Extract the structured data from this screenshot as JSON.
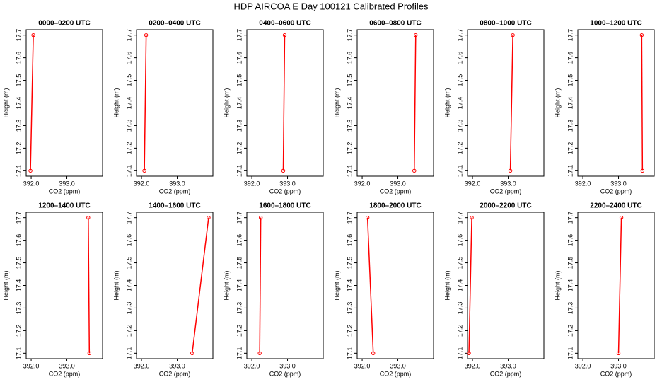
{
  "title": "HDP AIRCOA E  Day 100121  Calibrated Profiles",
  "chart_data": [
    {
      "type": "line",
      "title": "0000–0200 UTC",
      "xlabel": "CO2 (ppm)",
      "ylabel": "Height (m)",
      "color": "#ff0000",
      "x": [
        391.98,
        392.06
      ],
      "values": [
        17.1,
        17.7
      ],
      "xlim": [
        391.86,
        394.0
      ],
      "ylim": [
        17.076,
        17.724
      ],
      "xticks": [
        {
          "value": 392,
          "label": "392.0"
        },
        {
          "value": 393,
          "label": "393.0"
        }
      ],
      "yticks": [
        17.1,
        17.2,
        17.3,
        17.4,
        17.5,
        17.6,
        17.7
      ]
    },
    {
      "type": "line",
      "title": "0200–0400 UTC",
      "xlabel": "CO2 (ppm)",
      "ylabel": "Height (m)",
      "color": "#ff0000",
      "x": [
        392.08,
        392.13
      ],
      "values": [
        17.1,
        17.7
      ],
      "xlim": [
        391.86,
        394.0
      ],
      "ylim": [
        17.076,
        17.724
      ],
      "xticks": [
        {
          "value": 392,
          "label": "392.0"
        },
        {
          "value": 393,
          "label": "393.0"
        }
      ],
      "yticks": [
        17.1,
        17.2,
        17.3,
        17.4,
        17.5,
        17.6,
        17.7
      ]
    },
    {
      "type": "line",
      "title": "0400–0600 UTC",
      "xlabel": "CO2 (ppm)",
      "ylabel": "Height (m)",
      "color": "#ff0000",
      "x": [
        392.88,
        392.92
      ],
      "values": [
        17.1,
        17.7
      ],
      "xlim": [
        391.86,
        394.0
      ],
      "ylim": [
        17.076,
        17.724
      ],
      "xticks": [
        {
          "value": 392,
          "label": "392.0"
        },
        {
          "value": 393,
          "label": "393.0"
        }
      ],
      "yticks": [
        17.1,
        17.2,
        17.3,
        17.4,
        17.5,
        17.6,
        17.7
      ]
    },
    {
      "type": "line",
      "title": "0600–0800 UTC",
      "xlabel": "CO2 (ppm)",
      "ylabel": "Height (m)",
      "color": "#ff0000",
      "x": [
        393.46,
        393.5
      ],
      "values": [
        17.1,
        17.7
      ],
      "xlim": [
        391.86,
        394.0
      ],
      "ylim": [
        17.076,
        17.724
      ],
      "xticks": [
        {
          "value": 392,
          "label": "392.0"
        },
        {
          "value": 393,
          "label": "393.0"
        }
      ],
      "yticks": [
        17.1,
        17.2,
        17.3,
        17.4,
        17.5,
        17.6,
        17.7
      ]
    },
    {
      "type": "line",
      "title": "0800–1000 UTC",
      "xlabel": "CO2 (ppm)",
      "ylabel": "Height (m)",
      "color": "#ff0000",
      "x": [
        393.06,
        393.13
      ],
      "values": [
        17.1,
        17.7
      ],
      "xlim": [
        391.86,
        394.0
      ],
      "ylim": [
        17.076,
        17.724
      ],
      "xticks": [
        {
          "value": 392,
          "label": "392.0"
        },
        {
          "value": 393,
          "label": "393.0"
        }
      ],
      "yticks": [
        17.1,
        17.2,
        17.3,
        17.4,
        17.5,
        17.6,
        17.7
      ]
    },
    {
      "type": "line",
      "title": "1000–1200 UTC",
      "xlabel": "CO2 (ppm)",
      "ylabel": "Height (m)",
      "color": "#ff0000",
      "x": [
        393.67,
        393.65
      ],
      "values": [
        17.1,
        17.7
      ],
      "xlim": [
        391.86,
        394.0
      ],
      "ylim": [
        17.076,
        17.724
      ],
      "xticks": [
        {
          "value": 392,
          "label": "392.0"
        },
        {
          "value": 393,
          "label": "393.0"
        }
      ],
      "yticks": [
        17.1,
        17.2,
        17.3,
        17.4,
        17.5,
        17.6,
        17.7
      ]
    },
    {
      "type": "line",
      "title": "1200–1400 UTC",
      "xlabel": "CO2 (ppm)",
      "ylabel": "Height (m)",
      "color": "#ff0000",
      "x": [
        393.63,
        393.6
      ],
      "values": [
        17.1,
        17.7
      ],
      "xlim": [
        391.86,
        394.0
      ],
      "ylim": [
        17.076,
        17.724
      ],
      "xticks": [
        {
          "value": 392,
          "label": "392.0"
        },
        {
          "value": 393,
          "label": "393.0"
        }
      ],
      "yticks": [
        17.1,
        17.2,
        17.3,
        17.4,
        17.5,
        17.6,
        17.7
      ]
    },
    {
      "type": "line",
      "title": "1400–1600 UTC",
      "xlabel": "CO2 (ppm)",
      "ylabel": "Height (m)",
      "color": "#ff0000",
      "x": [
        393.42,
        393.88
      ],
      "values": [
        17.1,
        17.7
      ],
      "xlim": [
        391.86,
        394.0
      ],
      "ylim": [
        17.076,
        17.724
      ],
      "xticks": [
        {
          "value": 392,
          "label": "392.0"
        },
        {
          "value": 393,
          "label": "393.0"
        }
      ],
      "yticks": [
        17.1,
        17.2,
        17.3,
        17.4,
        17.5,
        17.6,
        17.7
      ]
    },
    {
      "type": "line",
      "title": "1600–1800 UTC",
      "xlabel": "CO2 (ppm)",
      "ylabel": "Height (m)",
      "color": "#ff0000",
      "x": [
        392.22,
        392.25
      ],
      "values": [
        17.1,
        17.7
      ],
      "xlim": [
        391.86,
        394.0
      ],
      "ylim": [
        17.076,
        17.724
      ],
      "xticks": [
        {
          "value": 392,
          "label": "392.0"
        },
        {
          "value": 393,
          "label": "393.0"
        }
      ],
      "yticks": [
        17.1,
        17.2,
        17.3,
        17.4,
        17.5,
        17.6,
        17.7
      ]
    },
    {
      "type": "line",
      "title": "1800–2000 UTC",
      "xlabel": "CO2 (ppm)",
      "ylabel": "Height (m)",
      "color": "#ff0000",
      "x": [
        392.31,
        392.15
      ],
      "values": [
        17.1,
        17.7
      ],
      "xlim": [
        391.86,
        394.0
      ],
      "ylim": [
        17.076,
        17.724
      ],
      "xticks": [
        {
          "value": 392,
          "label": "392.0"
        },
        {
          "value": 393,
          "label": "393.0"
        }
      ],
      "yticks": [
        17.1,
        17.2,
        17.3,
        17.4,
        17.5,
        17.6,
        17.7
      ]
    },
    {
      "type": "line",
      "title": "2000–2200 UTC",
      "xlabel": "CO2 (ppm)",
      "ylabel": "Height (m)",
      "color": "#ff0000",
      "x": [
        391.9,
        391.98
      ],
      "values": [
        17.1,
        17.7
      ],
      "xlim": [
        391.86,
        394.0
      ],
      "ylim": [
        17.076,
        17.724
      ],
      "xticks": [
        {
          "value": 392,
          "label": "392.0"
        },
        {
          "value": 393,
          "label": "393.0"
        }
      ],
      "yticks": [
        17.1,
        17.2,
        17.3,
        17.4,
        17.5,
        17.6,
        17.7
      ]
    },
    {
      "type": "line",
      "title": "2200–2400 UTC",
      "xlabel": "CO2 (ppm)",
      "ylabel": "Height (m)",
      "color": "#ff0000",
      "x": [
        393.0,
        393.08
      ],
      "values": [
        17.1,
        17.7
      ],
      "xlim": [
        391.86,
        394.0
      ],
      "ylim": [
        17.076,
        17.724
      ],
      "xticks": [
        {
          "value": 392,
          "label": "392.0"
        },
        {
          "value": 393,
          "label": "393.0"
        }
      ],
      "yticks": [
        17.1,
        17.2,
        17.3,
        17.4,
        17.5,
        17.6,
        17.7
      ]
    }
  ]
}
